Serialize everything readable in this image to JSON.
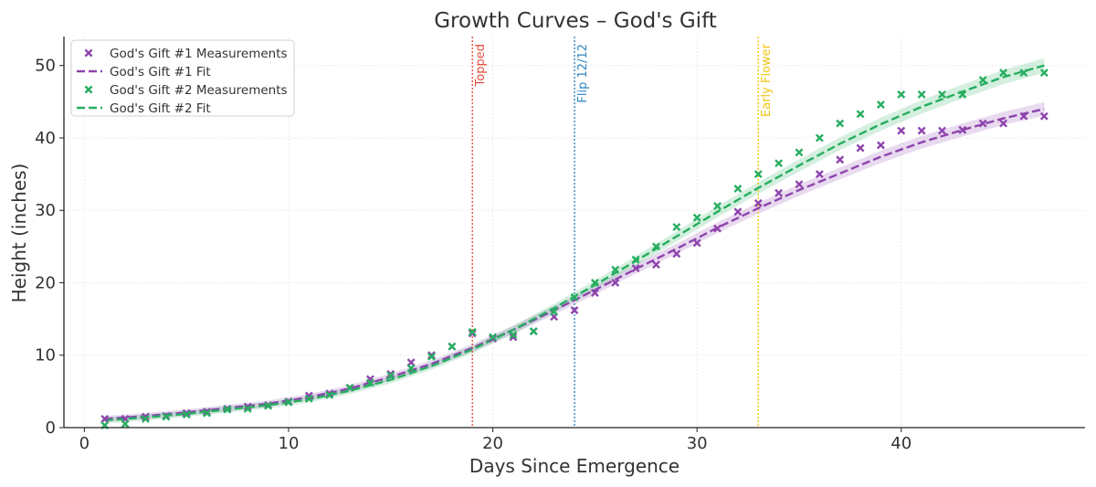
{
  "chart_data": {
    "type": "line",
    "title": "Growth Curves – God's Gift",
    "xlabel": "Days Since Emergence",
    "ylabel": "Height (inches)",
    "xlim": [
      -1,
      49
    ],
    "ylim": [
      0,
      54
    ],
    "xticks": [
      0,
      10,
      20,
      30,
      40
    ],
    "yticks": [
      0,
      10,
      20,
      30,
      40,
      50
    ],
    "grid": true,
    "legend_position": "top-left",
    "series": [
      {
        "name": "God's Gift #1 Measurements",
        "kind": "scatter",
        "color": "#8e44ad",
        "x": [
          1,
          2,
          3,
          4,
          5,
          6,
          7,
          8,
          9,
          10,
          11,
          12,
          13,
          14,
          15,
          16,
          17,
          18,
          19,
          20,
          21,
          22,
          23,
          24,
          25,
          26,
          27,
          28,
          29,
          30,
          31,
          32,
          33,
          34,
          35,
          36,
          37,
          38,
          39,
          40,
          41,
          42,
          43,
          44,
          45,
          46,
          47
        ],
        "y": [
          1.2,
          1.2,
          1.5,
          1.6,
          2.0,
          2.2,
          2.6,
          2.9,
          3.1,
          3.6,
          4.4,
          4.7,
          5.5,
          6.7,
          7.4,
          9.0,
          10.0,
          11.2,
          13.0,
          12.3,
          12.5,
          13.3,
          15.3,
          16.2,
          18.6,
          20.0,
          22.0,
          22.5,
          24.0,
          25.5,
          27.5,
          29.8,
          31.0,
          32.4,
          33.6,
          35.0,
          37.0,
          38.6,
          39.0,
          41.0,
          41.0,
          41.0,
          41.1,
          42.0,
          42.0,
          43.0,
          43.0
        ]
      },
      {
        "name": "God's Gift #1 Fit",
        "kind": "line",
        "style": "dashed",
        "color": "#8e44ad",
        "x": [
          1,
          3,
          5,
          7,
          9,
          11,
          13,
          15,
          17,
          19,
          21,
          23,
          25,
          27,
          29,
          31,
          33,
          35,
          37,
          39,
          41,
          43,
          45,
          47
        ],
        "y": [
          1.2,
          1.6,
          2.1,
          2.7,
          3.3,
          4.2,
          5.4,
          7.0,
          8.8,
          11.0,
          13.5,
          16.2,
          19.0,
          21.9,
          24.7,
          27.6,
          30.3,
          32.8,
          35.1,
          37.4,
          39.4,
          41.1,
          42.7,
          44.0
        ]
      },
      {
        "name": "God's Gift #2 Measurements",
        "kind": "scatter",
        "color": "#27ae60",
        "x": [
          1,
          2,
          3,
          4,
          5,
          6,
          7,
          8,
          9,
          10,
          11,
          12,
          13,
          14,
          15,
          16,
          17,
          18,
          19,
          20,
          21,
          22,
          23,
          24,
          25,
          26,
          27,
          28,
          29,
          30,
          31,
          32,
          33,
          34,
          35,
          36,
          37,
          38,
          39,
          40,
          41,
          42,
          43,
          44,
          45,
          46,
          47
        ],
        "y": [
          0.3,
          0.5,
          1.2,
          1.5,
          1.8,
          2.0,
          2.5,
          2.6,
          3.0,
          3.5,
          4.0,
          4.5,
          5.5,
          6.2,
          7.2,
          8.2,
          9.8,
          11.2,
          13.2,
          12.5,
          12.8,
          13.3,
          16.0,
          18.0,
          20.0,
          21.8,
          23.2,
          25.0,
          27.7,
          29.0,
          30.6,
          33.0,
          35.0,
          36.5,
          38.0,
          40.0,
          42.0,
          43.3,
          44.6,
          46.0,
          46.0,
          46.0,
          46.0,
          48.0,
          49.0,
          49.0,
          49.0
        ]
      },
      {
        "name": "God's Gift #2 Fit",
        "kind": "line",
        "style": "dashed",
        "color": "#27ae60",
        "x": [
          1,
          3,
          5,
          7,
          9,
          11,
          13,
          15,
          17,
          19,
          21,
          23,
          25,
          27,
          29,
          31,
          33,
          35,
          37,
          39,
          41,
          43,
          45,
          47
        ],
        "y": [
          1.0,
          1.4,
          1.9,
          2.5,
          3.1,
          3.9,
          5.1,
          6.6,
          8.5,
          10.8,
          13.5,
          16.5,
          19.7,
          23.0,
          26.4,
          29.8,
          33.1,
          36.2,
          39.2,
          41.9,
          44.3,
          46.4,
          48.4,
          50.0
        ]
      }
    ],
    "vlines": [
      {
        "x": 19,
        "label": "Topped",
        "color": "#e74c3c"
      },
      {
        "x": 24,
        "label": "Flip 12/12",
        "color": "#2e86c1"
      },
      {
        "x": 33,
        "label": "Early Flower",
        "color": "#f1c40f"
      }
    ]
  }
}
